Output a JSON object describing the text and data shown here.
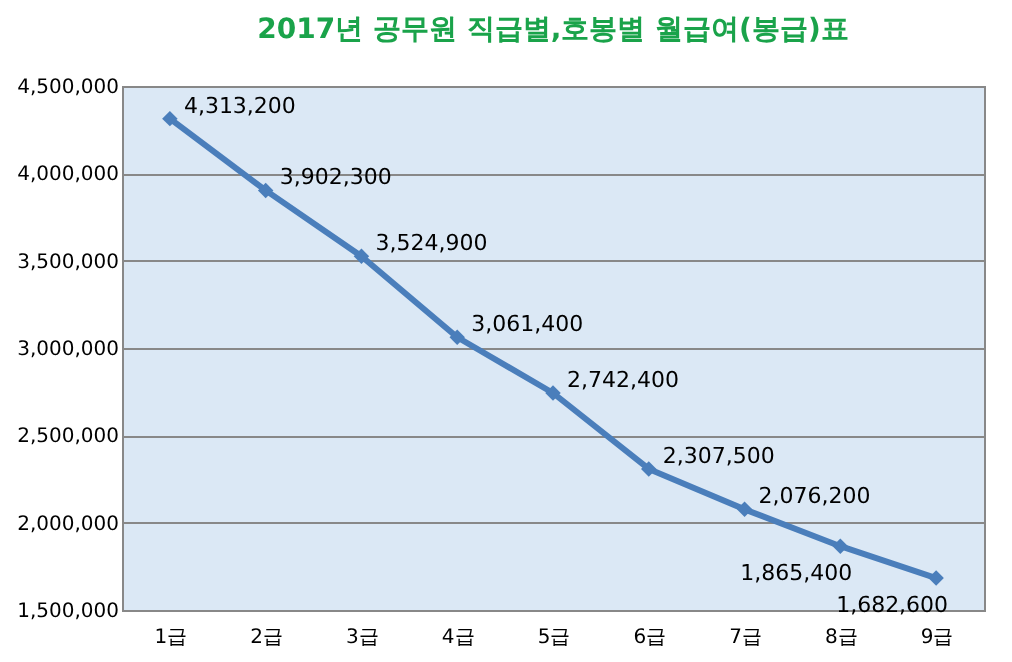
{
  "chart_data": {
    "type": "line",
    "title": "2017년 공무원 직급별,호봉별 월급여(봉급)표",
    "categories": [
      "1급",
      "2급",
      "3급",
      "4급",
      "5급",
      "6급",
      "7급",
      "8급",
      "9급"
    ],
    "series": [
      {
        "color": "#4a7ebb",
        "values": [
          4313200,
          3902300,
          3524900,
          3061400,
          2742400,
          2307500,
          2076200,
          1865400,
          1682600
        ],
        "value_labels": [
          "4,313,200",
          "3,902,300",
          "3,524,900",
          "3,061,400",
          "2,742,400",
          "2,307,500",
          "2,076,200",
          "1,865,400",
          "1,682,600"
        ]
      }
    ],
    "ylim": [
      1500000,
      4500000
    ],
    "yticks": [
      {
        "value": 1500000,
        "label": "1,500,000"
      },
      {
        "value": 2000000,
        "label": "2,000,000"
      },
      {
        "value": 2500000,
        "label": "2,500,000"
      },
      {
        "value": 3000000,
        "label": "3,000,000"
      },
      {
        "value": 3500000,
        "label": "3,500,000"
      },
      {
        "value": 4000000,
        "label": "4,000,000"
      },
      {
        "value": 4500000,
        "label": "4,500,000"
      }
    ],
    "grid": "y",
    "marker": "diamond",
    "line_style": "solid"
  }
}
